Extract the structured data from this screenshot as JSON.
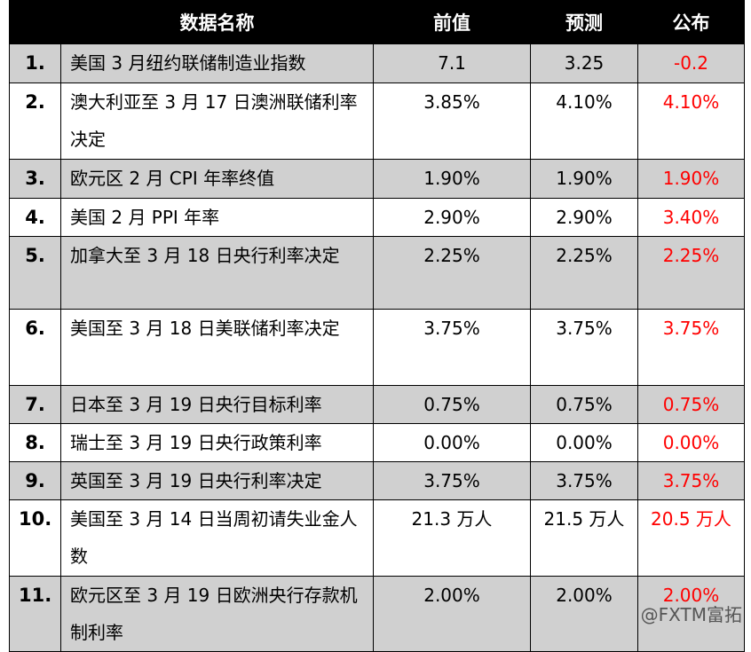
{
  "header": {
    "columns": [
      "数据名称",
      "前值",
      "预测",
      "公布"
    ]
  },
  "table": {
    "rows": [
      [
        "1.",
        "美国 3 月纽约联储制造业指数",
        "7.1",
        "3.25",
        "-0.2"
      ],
      [
        "2.",
        "澳大利亚至 3 月 17 日澳洲联储利率决定",
        "3.85%",
        "4.10%",
        "4.10%"
      ],
      [
        "3.",
        "欧元区 2 月 CPI 年率终值",
        "1.90%",
        "1.90%",
        "1.90%"
      ],
      [
        "4.",
        "美国 2 月 PPI 年率",
        "2.90%",
        "2.90%",
        "3.40%"
      ],
      [
        "5.",
        "加拿大至 3 月 18 日央行利率决定",
        "2.25%",
        "2.25%",
        "2.25%"
      ],
      [
        "6.",
        "美国至 3 月 18 日美联储利率决定",
        "3.75%",
        "3.75%",
        "3.75%"
      ],
      [
        "7.",
        "日本至 3 月 19 日央行目标利率",
        "0.75%",
        "0.75%",
        "0.75%"
      ],
      [
        "8.",
        "瑞士至 3 月 19 日央行政策利率",
        "0.00%",
        "0.00%",
        "0.00%"
      ],
      [
        "9.",
        "英国至 3 月 19 日央行利率决定",
        "3.75%",
        "3.75%",
        "3.75%"
      ],
      [
        "10.",
        "美国至 3 月 14 日当周初请失业金人数",
        "21.3 万人",
        "21.5 万人",
        "20.5 万人"
      ],
      [
        "11.",
        "欧元区至 3 月 19 日欧洲央行存款机制利率",
        "2.00%",
        "2.00%",
        "2.00%"
      ]
    ]
  },
  "watermark": "@FXTM富拓"
}
